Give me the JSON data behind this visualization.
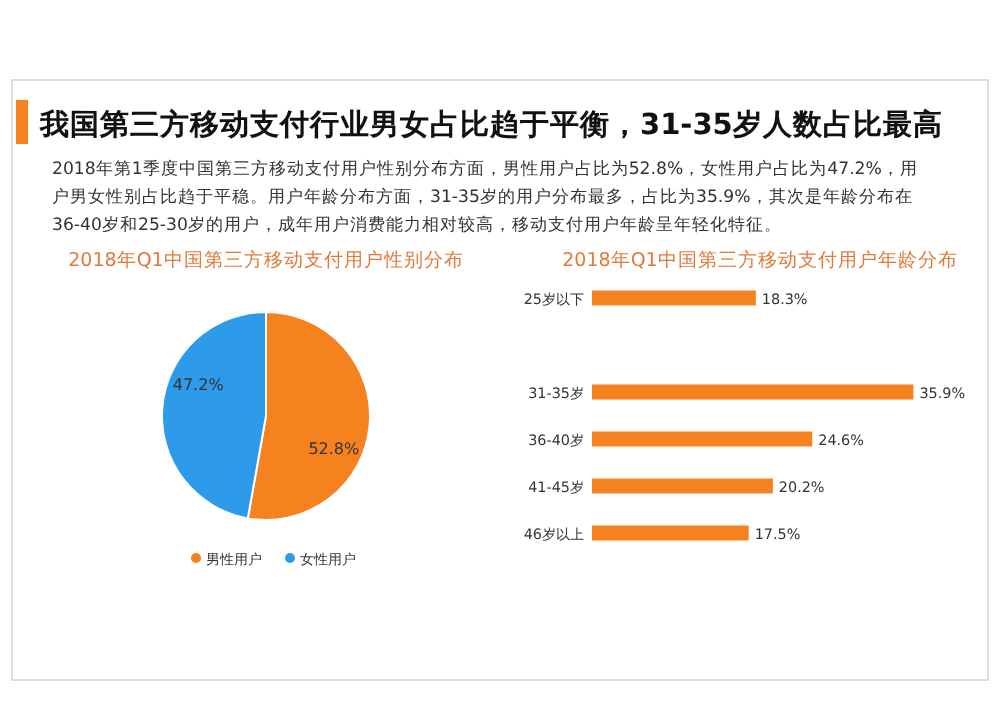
{
  "chart_data": [
    {
      "type": "pie",
      "title": "2018年Q1中国第三方移动支付用户性别分布",
      "categories": [
        "男性用户",
        "女性用户"
      ],
      "values": [
        52.8,
        47.2
      ],
      "colors": [
        "#f5821f",
        "#2e9bea"
      ],
      "value_labels": [
        "52.8%",
        "47.2%"
      ],
      "legend": "bottom",
      "annotations": [
        "我国第三方移动支付行业男女占比趋于平衡，31-35岁人数占比最高",
        "2018年第1季度中国第三方移动支付用户性别分布方面，男性用户占比为52.8%，女性用户占比为47.2%，用户男女性别占比趋于平稳。用户年龄分布方面，31-35岁的用户分布最多，占比为35.9%，其次是年龄分布在36-40岁和25-30岁的用户，成年用户消费能力相对较高，移动支付用户年龄呈年轻化特征。"
      ]
    },
    {
      "type": "bar",
      "orientation": "horizontal",
      "title": "2018年Q1中国第三方移动支付用户年龄分布",
      "categories": [
        "25岁以下",
        null,
        "31-35岁",
        "36-40岁",
        "41-45岁",
        "46岁以上"
      ],
      "values": [
        18.3,
        null,
        35.9,
        24.6,
        20.2,
        17.5
      ],
      "value_labels": [
        "18.3%",
        null,
        "35.9%",
        "24.6%",
        "20.2%",
        "17.5%"
      ],
      "color": "#f5821f",
      "tick_labels": false
    }
  ]
}
